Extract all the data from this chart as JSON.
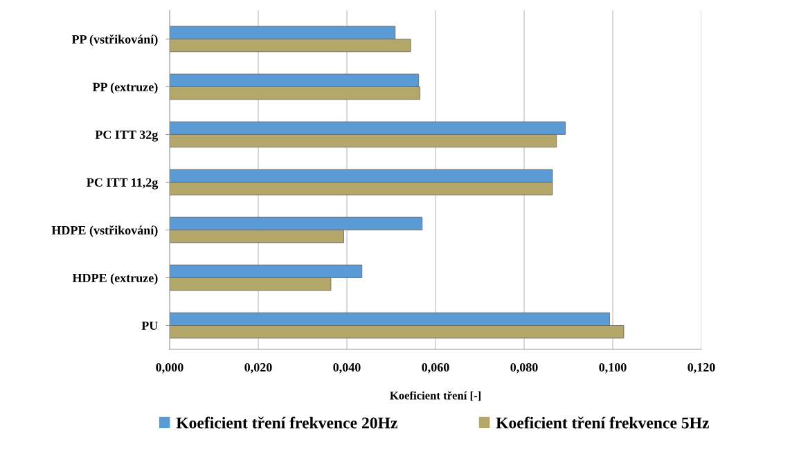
{
  "chart_data": {
    "type": "bar",
    "orientation": "horizontal",
    "xlabel": "Koeficient tření [-]",
    "categories": [
      "PP (vstřikování)",
      "PP (extruze)",
      "PC ITT 32g",
      "PC ITT 11,2g",
      "HDPE (vstřikování)",
      "HDPE (extruze)",
      "PU"
    ],
    "series": [
      {
        "name": "Koeficient tření frekvence 20Hz",
        "color": "#5b9bd5",
        "values": [
          0.0509,
          0.0562,
          0.0893,
          0.0864,
          0.057,
          0.0434,
          0.0993
        ]
      },
      {
        "name": "Koeficient tření frekvence 5Hz",
        "color": "#b3a76a",
        "values": [
          0.0544,
          0.0565,
          0.0873,
          0.0864,
          0.0393,
          0.0364,
          0.1025
        ]
      }
    ],
    "xlim": [
      0,
      0.12
    ],
    "xticks": [
      {
        "value": 0,
        "label": "0,000"
      },
      {
        "value": 0.02,
        "label": "0,020"
      },
      {
        "value": 0.04,
        "label": "0,040"
      },
      {
        "value": 0.06,
        "label": "0,060"
      },
      {
        "value": 0.08,
        "label": "0,080"
      },
      {
        "value": 0.1,
        "label": "0,100"
      },
      {
        "value": 0.12,
        "label": "0,120"
      }
    ],
    "grid": "x",
    "legend": "bottom"
  }
}
